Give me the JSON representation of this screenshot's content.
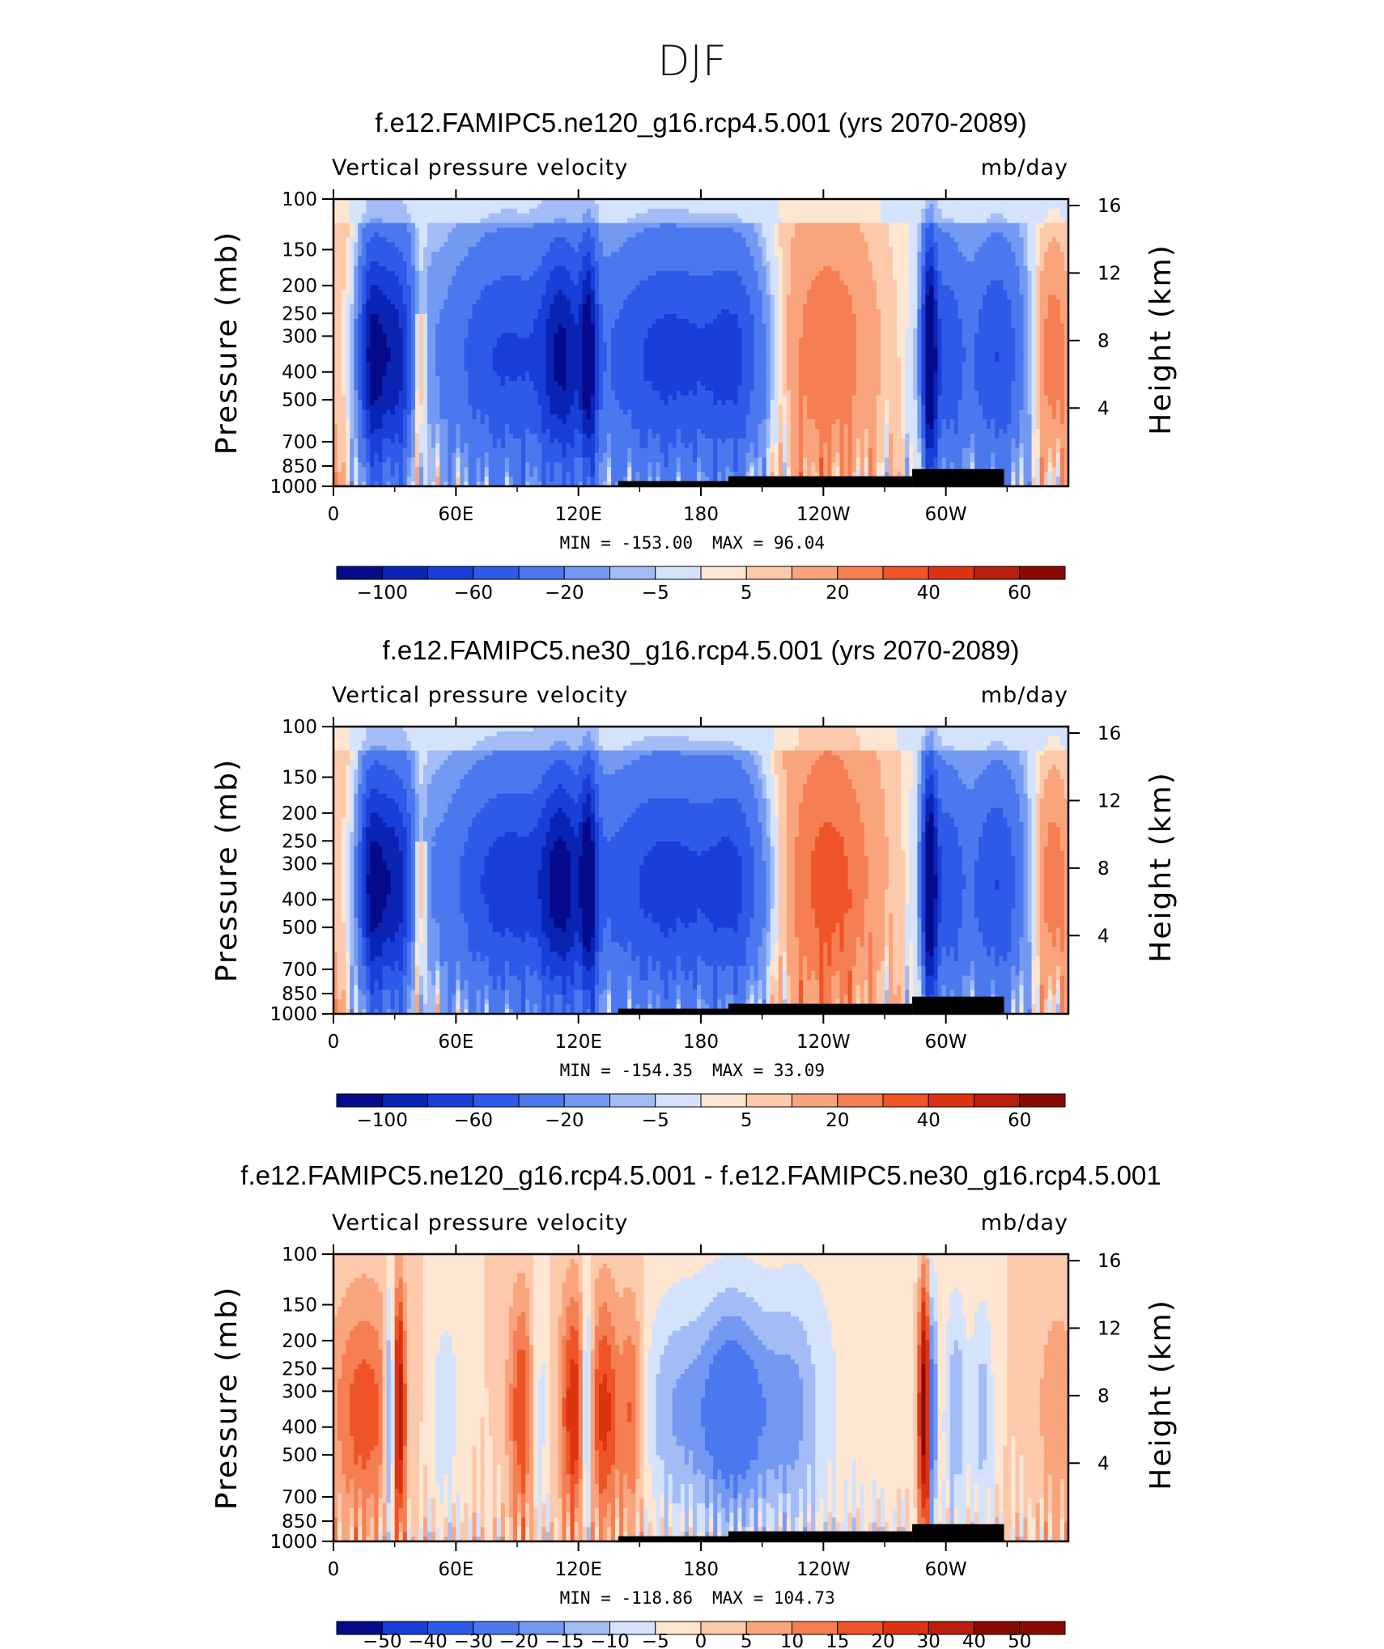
{
  "figure_title": "DJF",
  "chart_data": [
    {
      "type": "heatmap",
      "title": "f.e12.FAMIPC5.ne120_g16.rcp4.5.001 (yrs 2070-2089)",
      "left_string": "Vertical pressure velocity",
      "units": "mb/day",
      "xlabel": "",
      "ylabel": "Pressure (mb)",
      "ylabel_right": "Height (km)",
      "x_ticks": [
        "0",
        "60E",
        "120E",
        "180",
        "120W",
        "60W"
      ],
      "y_ticks": [
        "100",
        "150",
        "200",
        "250",
        "300",
        "400",
        "500",
        "700",
        "850",
        "1000"
      ],
      "y_right_ticks": [
        "16",
        "12",
        "8",
        "4"
      ],
      "xlim": [
        0,
        360
      ],
      "ylim": [
        1000,
        100
      ],
      "min": "-153.00",
      "max": "96.04",
      "min_label": "MIN = -153.00",
      "max_label": "MAX = 96.04",
      "colorbar_levels": [
        -100,
        -80,
        -60,
        -40,
        -20,
        -10,
        -5,
        -2,
        2,
        5,
        10,
        20,
        30,
        40,
        50,
        60,
        80
      ],
      "colorbar_labels": [
        "−100",
        "−60",
        "−20",
        "−5",
        "5",
        "20",
        "40",
        "60"
      ]
    },
    {
      "type": "heatmap",
      "title": "f.e12.FAMIPC5.ne30_g16.rcp4.5.001 (yrs 2070-2089)",
      "left_string": "Vertical pressure velocity",
      "units": "mb/day",
      "xlabel": "",
      "ylabel": "Pressure (mb)",
      "ylabel_right": "Height (km)",
      "x_ticks": [
        "0",
        "60E",
        "120E",
        "180",
        "120W",
        "60W"
      ],
      "y_ticks": [
        "100",
        "150",
        "200",
        "250",
        "300",
        "400",
        "500",
        "700",
        "850",
        "1000"
      ],
      "y_right_ticks": [
        "16",
        "12",
        "8",
        "4"
      ],
      "xlim": [
        0,
        360
      ],
      "ylim": [
        1000,
        100
      ],
      "min": "-154.35",
      "max": "33.09",
      "min_label": "MIN = -154.35",
      "max_label": "MAX = 33.09",
      "colorbar_levels": [
        -100,
        -80,
        -60,
        -40,
        -20,
        -10,
        -5,
        -2,
        2,
        5,
        10,
        20,
        30,
        40,
        50,
        60,
        80
      ],
      "colorbar_labels": [
        "−100",
        "−60",
        "−20",
        "−5",
        "5",
        "20",
        "40",
        "60"
      ]
    },
    {
      "type": "heatmap",
      "title": "f.e12.FAMIPC5.ne120_g16.rcp4.5.001 - f.e12.FAMIPC5.ne30_g16.rcp4.5.001",
      "left_string": "Vertical pressure velocity",
      "units": "mb/day",
      "xlabel": "",
      "ylabel": "Pressure (mb)",
      "ylabel_right": "Height (km)",
      "x_ticks": [
        "0",
        "60E",
        "120E",
        "180",
        "120W",
        "60W"
      ],
      "y_ticks": [
        "100",
        "150",
        "200",
        "250",
        "300",
        "400",
        "500",
        "700",
        "850",
        "1000"
      ],
      "y_right_ticks": [
        "16",
        "12",
        "8",
        "4"
      ],
      "xlim": [
        0,
        360
      ],
      "ylim": [
        1000,
        100
      ],
      "min": "-118.86",
      "max": "104.73",
      "min_label": "MIN = -118.86",
      "max_label": "MAX = 104.73",
      "colorbar_levels": [
        -50,
        -40,
        -30,
        -20,
        -15,
        -10,
        -5,
        0,
        5,
        10,
        15,
        20,
        30,
        40,
        50
      ],
      "colorbar_labels": [
        "−50",
        "−40",
        "−30",
        "−20",
        "−15",
        "−10",
        "−5",
        "0",
        "5",
        "10",
        "15",
        "20",
        "30",
        "40",
        "50"
      ]
    }
  ],
  "colors": {
    "c1": "#050b8a",
    "c2": "#0a24b4",
    "c3": "#1a3ed8",
    "c4": "#2e5ae8",
    "c5": "#4b78ee",
    "c6": "#7399f2",
    "c7": "#a3bcf6",
    "c8": "#d4e3fb",
    "c9": "#fde6d2",
    "c10": "#fcc9ab",
    "c11": "#f9a47d",
    "c12": "#f57e52",
    "c13": "#ee5427",
    "c14": "#dc3413",
    "c15": "#b91f0c",
    "c16": "#8a0a05",
    "topography": "#000000"
  }
}
